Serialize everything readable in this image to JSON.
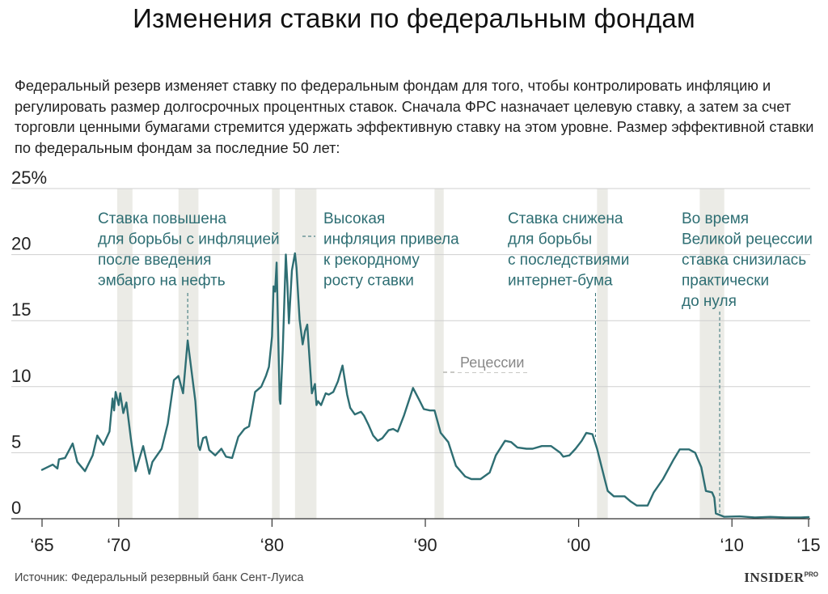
{
  "chart_data": {
    "type": "line",
    "title": "Изменения ставки по федеральным фондам",
    "subtitle": "Федеральный резерв изменяет ставку по федеральным фондам для того, чтобы контролировать инфляцию и регулировать размер долгосрочных процентных ставок. Сначала ФРС назначает целевую ставку, а затем за счет торговли ценными бумагами стремится удержать эффективную ставку на этом уровне. Размер эффективной ставки по федеральным фондам за последние 50 лет:",
    "xlim": [
      1965,
      2015
    ],
    "ylim": [
      0,
      25
    ],
    "y_ticks": [
      0,
      5,
      10,
      15,
      20,
      25
    ],
    "y_tick_labels": [
      "0",
      "5",
      "10",
      "15",
      "20",
      "25%"
    ],
    "x_ticks": [
      1965,
      1970,
      1980,
      1990,
      2000,
      2010,
      2015
    ],
    "x_tick_labels": [
      "‘65",
      "‘70",
      "‘80",
      "‘90",
      "‘00",
      "‘10",
      "‘15"
    ],
    "grid": "horizontal",
    "series": [
      {
        "color": "#2e6e73",
        "points": [
          [
            1965.0,
            3.7
          ],
          [
            1965.7,
            4.1
          ],
          [
            1966.0,
            3.8
          ],
          [
            1966.1,
            4.5
          ],
          [
            1966.5,
            4.6
          ],
          [
            1967.0,
            5.7
          ],
          [
            1967.3,
            4.3
          ],
          [
            1967.8,
            3.6
          ],
          [
            1968.3,
            4.8
          ],
          [
            1968.6,
            6.3
          ],
          [
            1969.0,
            5.6
          ],
          [
            1969.4,
            6.6
          ],
          [
            1969.6,
            9.1
          ],
          [
            1969.7,
            8.2
          ],
          [
            1969.8,
            9.6
          ],
          [
            1970.0,
            8.6
          ],
          [
            1970.1,
            9.5
          ],
          [
            1970.3,
            8.0
          ],
          [
            1970.5,
            8.8
          ],
          [
            1970.8,
            6.0
          ],
          [
            1971.1,
            3.6
          ],
          [
            1971.6,
            5.5
          ],
          [
            1972.0,
            3.4
          ],
          [
            1972.2,
            4.3
          ],
          [
            1972.8,
            5.3
          ],
          [
            1973.2,
            7.2
          ],
          [
            1973.6,
            10.5
          ],
          [
            1973.9,
            10.8
          ],
          [
            1974.2,
            9.5
          ],
          [
            1974.5,
            13.5
          ],
          [
            1975.0,
            8.9
          ],
          [
            1975.2,
            5.5
          ],
          [
            1975.3,
            5.2
          ],
          [
            1975.5,
            6.1
          ],
          [
            1975.7,
            6.2
          ],
          [
            1975.9,
            5.2
          ],
          [
            1976.3,
            4.8
          ],
          [
            1976.7,
            5.3
          ],
          [
            1977.0,
            4.7
          ],
          [
            1977.4,
            4.6
          ],
          [
            1977.8,
            6.2
          ],
          [
            1978.2,
            6.8
          ],
          [
            1978.5,
            7.0
          ],
          [
            1978.9,
            9.6
          ],
          [
            1979.3,
            10.0
          ],
          [
            1979.6,
            10.8
          ],
          [
            1979.8,
            11.5
          ],
          [
            1980.0,
            13.8
          ],
          [
            1980.1,
            17.6
          ],
          [
            1980.2,
            17.2
          ],
          [
            1980.3,
            19.4
          ],
          [
            1980.4,
            14.0
          ],
          [
            1980.5,
            9.0
          ],
          [
            1980.55,
            8.7
          ],
          [
            1980.7,
            12.8
          ],
          [
            1980.9,
            20.0
          ],
          [
            1981.0,
            17.8
          ],
          [
            1981.1,
            14.8
          ],
          [
            1981.3,
            18.8
          ],
          [
            1981.5,
            20.1
          ],
          [
            1981.6,
            19.0
          ],
          [
            1981.8,
            15.1
          ],
          [
            1982.0,
            13.2
          ],
          [
            1982.15,
            14.2
          ],
          [
            1982.3,
            14.7
          ],
          [
            1982.5,
            11.2
          ],
          [
            1982.6,
            9.5
          ],
          [
            1982.8,
            10.2
          ],
          [
            1982.9,
            8.6
          ],
          [
            1983.0,
            8.9
          ],
          [
            1983.2,
            8.6
          ],
          [
            1983.5,
            9.5
          ],
          [
            1983.7,
            9.4
          ],
          [
            1984.0,
            9.6
          ],
          [
            1984.3,
            10.4
          ],
          [
            1984.6,
            11.6
          ],
          [
            1984.9,
            9.4
          ],
          [
            1985.1,
            8.4
          ],
          [
            1985.4,
            7.9
          ],
          [
            1985.8,
            8.1
          ],
          [
            1986.0,
            7.8
          ],
          [
            1986.3,
            7.1
          ],
          [
            1986.6,
            6.3
          ],
          [
            1986.9,
            5.9
          ],
          [
            1987.2,
            6.1
          ],
          [
            1987.6,
            6.7
          ],
          [
            1987.9,
            6.8
          ],
          [
            1988.2,
            6.6
          ],
          [
            1988.6,
            7.8
          ],
          [
            1989.2,
            9.9
          ],
          [
            1989.6,
            9.0
          ],
          [
            1989.9,
            8.3
          ],
          [
            1990.3,
            8.2
          ],
          [
            1990.6,
            8.2
          ],
          [
            1991.0,
            6.5
          ],
          [
            1991.5,
            5.8
          ],
          [
            1992.0,
            4.0
          ],
          [
            1992.6,
            3.2
          ],
          [
            1993.0,
            3.0
          ],
          [
            1993.6,
            3.0
          ],
          [
            1994.2,
            3.5
          ],
          [
            1994.6,
            4.8
          ],
          [
            1995.2,
            5.9
          ],
          [
            1995.6,
            5.8
          ],
          [
            1996.0,
            5.4
          ],
          [
            1996.6,
            5.3
          ],
          [
            1997.0,
            5.3
          ],
          [
            1997.6,
            5.5
          ],
          [
            1998.2,
            5.5
          ],
          [
            1998.8,
            5.0
          ],
          [
            1999.0,
            4.7
          ],
          [
            1999.4,
            4.8
          ],
          [
            1999.8,
            5.3
          ],
          [
            2000.2,
            5.9
          ],
          [
            2000.5,
            6.5
          ],
          [
            2000.9,
            6.4
          ],
          [
            2001.2,
            5.3
          ],
          [
            2001.7,
            3.0
          ],
          [
            2001.9,
            2.1
          ],
          [
            2002.3,
            1.7
          ],
          [
            2003.0,
            1.7
          ],
          [
            2003.4,
            1.3
          ],
          [
            2003.8,
            1.0
          ],
          [
            2004.5,
            1.0
          ],
          [
            2004.9,
            2.0
          ],
          [
            2005.5,
            3.0
          ],
          [
            2006.2,
            4.5
          ],
          [
            2006.6,
            5.25
          ],
          [
            2007.2,
            5.25
          ],
          [
            2007.6,
            5.0
          ],
          [
            2008.0,
            3.9
          ],
          [
            2008.3,
            2.1
          ],
          [
            2008.7,
            2.0
          ],
          [
            2008.85,
            1.6
          ],
          [
            2008.95,
            0.4
          ],
          [
            2009.5,
            0.15
          ],
          [
            2010.5,
            0.18
          ],
          [
            2011.5,
            0.1
          ],
          [
            2012.5,
            0.14
          ],
          [
            2013.5,
            0.1
          ],
          [
            2014.5,
            0.09
          ],
          [
            2015.0,
            0.13
          ]
        ]
      }
    ],
    "recessions": [
      [
        1969.9,
        1970.9
      ],
      [
        1973.9,
        1975.2
      ],
      [
        1980.0,
        1980.5
      ],
      [
        1981.5,
        1982.9
      ],
      [
        1990.6,
        1991.2
      ],
      [
        2001.2,
        2001.9
      ],
      [
        2007.9,
        2009.5
      ]
    ],
    "recession_color": "#ebebe6",
    "legend_label": "Рецессии",
    "annotations": [
      {
        "lines": [
          "Ставка повышена",
          "для борьбы с инфляцией",
          "после введения",
          "эмбарго на нефть"
        ],
        "x": 1974.5,
        "y": 13.5
      },
      {
        "lines": [
          "Высокая",
          "инфляция привела",
          "к рекордному",
          "росту ставки"
        ],
        "x": 1981.5,
        "y": 20.1
      },
      {
        "lines": [
          "Ставка снижена",
          "для борьбы",
          "с последствиями",
          "интернет-бума"
        ],
        "x": 2001.1,
        "y": 6.4
      },
      {
        "lines": [
          "Во время",
          "Великой рецессии",
          "ставка снизилась",
          "практически",
          "до нуля"
        ],
        "x": 2009.2,
        "y": 0.2
      }
    ]
  },
  "footer": {
    "source": "Источник: Федеральный резервный банк Сент-Луиса",
    "brand": "INSIDER",
    "brand_sup": "PRO"
  }
}
